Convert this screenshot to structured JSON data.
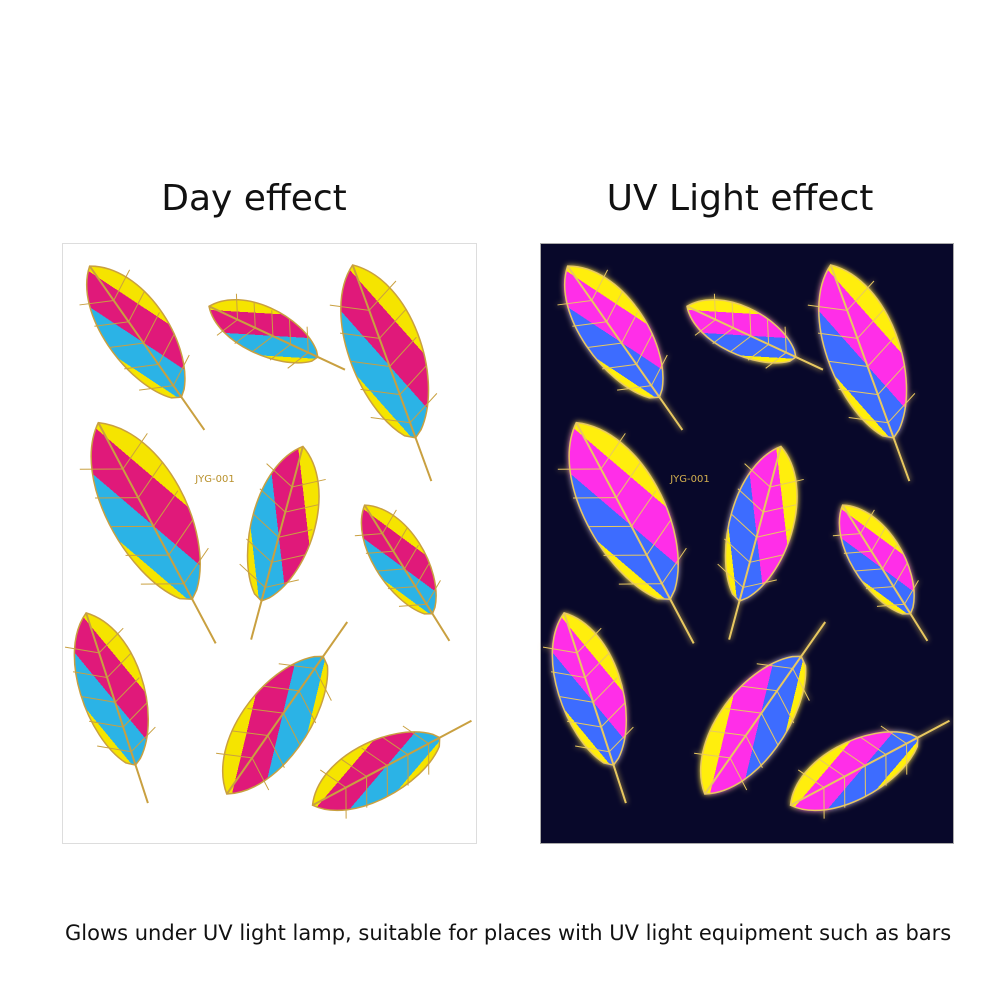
{
  "panels": [
    {
      "title": "Day effect",
      "code": "JYG-001"
    },
    {
      "title": "UV Light effect",
      "code": "JYG-001"
    }
  ],
  "caption": "Glows under UV light lamp, suitable for places with UV light equipment such as bars"
}
